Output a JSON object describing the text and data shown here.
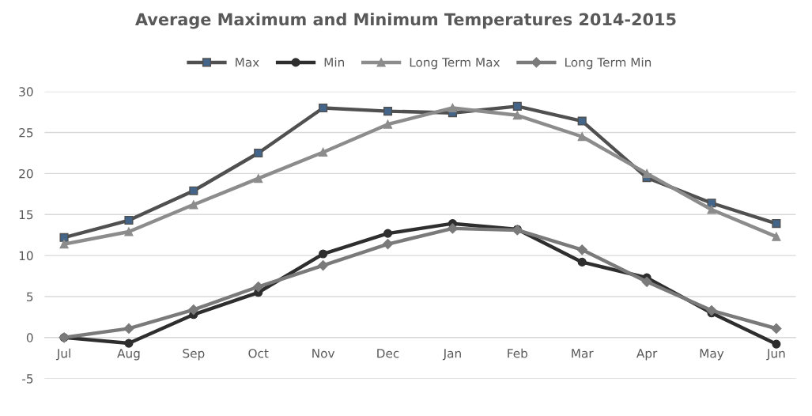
{
  "chart_data": {
    "type": "line",
    "title": "Average Maximum and Minimum Temperatures 2014-2015",
    "categories": [
      "Jul",
      "Aug",
      "Sep",
      "Oct",
      "Nov",
      "Dec",
      "Jan",
      "Feb",
      "Mar",
      "Apr",
      "May",
      "Jun"
    ],
    "series": [
      {
        "name": "Max",
        "color": "#505050",
        "marker": "square",
        "values": [
          12.2,
          14.3,
          17.9,
          22.5,
          28.0,
          27.6,
          27.4,
          28.2,
          26.4,
          19.5,
          16.4,
          13.9
        ]
      },
      {
        "name": "Min",
        "color": "#2e2e2e",
        "marker": "circle",
        "values": [
          0.0,
          -0.7,
          2.8,
          5.5,
          10.2,
          12.7,
          13.9,
          13.2,
          9.2,
          7.3,
          3.0,
          -0.8
        ]
      },
      {
        "name": "Long Term Max",
        "color": "#8c8c8c",
        "marker": "triangle",
        "values": [
          11.4,
          12.9,
          16.2,
          19.4,
          22.6,
          26.0,
          28.0,
          27.1,
          24.5,
          20.0,
          15.6,
          12.3
        ]
      },
      {
        "name": "Long Term Min",
        "color": "#7a7a7a",
        "marker": "diamond",
        "values": [
          0.0,
          1.1,
          3.4,
          6.2,
          8.8,
          11.4,
          13.3,
          13.1,
          10.7,
          6.8,
          3.3,
          1.1
        ]
      }
    ],
    "ylim": [
      -5,
      30
    ],
    "yticks": [
      -5,
      0,
      5,
      10,
      15,
      20,
      25,
      30
    ],
    "grid": "y",
    "legend": "top",
    "line_style": "solid"
  }
}
